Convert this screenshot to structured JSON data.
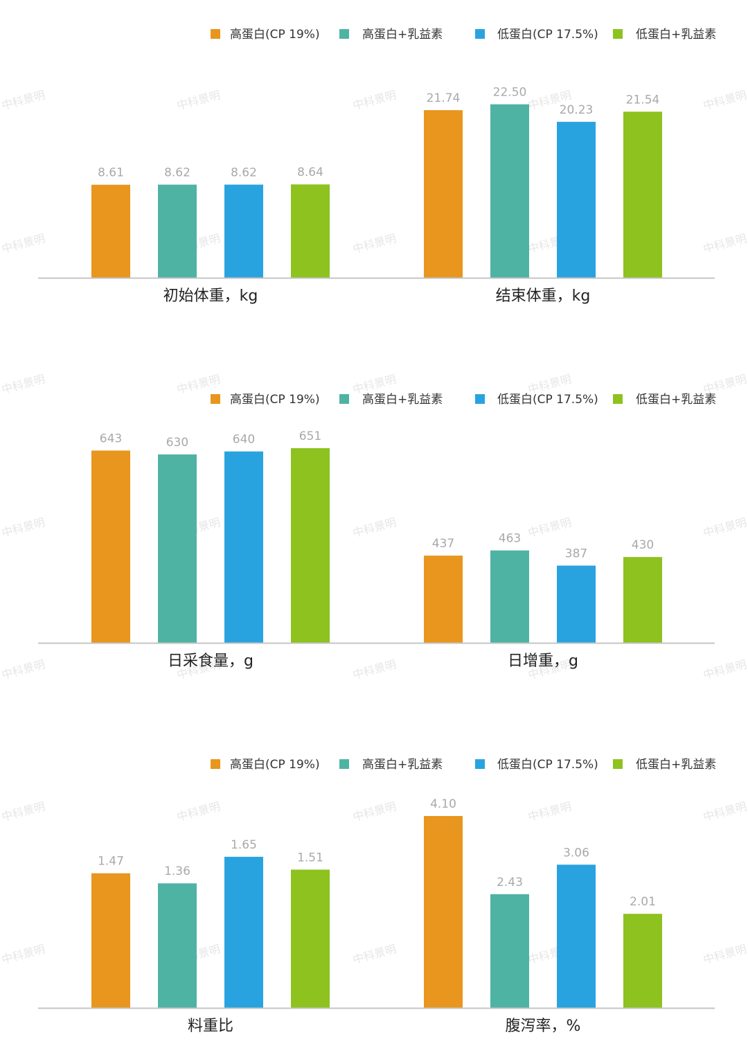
{
  "legend": [
    {
      "label": "高蛋白(CP 19%)",
      "color": "#E8961E"
    },
    {
      "label": "高蛋白+乳益素",
      "color": "#4FB3A4"
    },
    {
      "label": "低蛋白(CP 17.5%)",
      "color": "#29A3DF"
    },
    {
      "label": "低蛋白+乳益素",
      "color": "#8DC21F"
    }
  ],
  "watermark": "中科景明",
  "chart_data": [
    {
      "type": "bar",
      "categories": [
        "初始体重，kg",
        "结束体重，kg"
      ],
      "series": [
        {
          "name": "高蛋白(CP 19%)",
          "values": [
            8.61,
            21.74
          ],
          "labels": [
            "8.61",
            "21.74"
          ]
        },
        {
          "name": "高蛋白+乳益素",
          "values": [
            8.62,
            22.5
          ],
          "labels": [
            "8.62",
            "22.50"
          ]
        },
        {
          "name": "低蛋白(CP 17.5%)",
          "values": [
            8.62,
            20.23
          ],
          "labels": [
            "8.62",
            "20.23"
          ]
        },
        {
          "name": "低蛋白+乳益素",
          "values": [
            8.64,
            21.54
          ],
          "labels": [
            "8.64",
            "21.54"
          ]
        }
      ],
      "legend_position": "top-right",
      "grid": false
    },
    {
      "type": "bar",
      "categories": [
        "日采食量，g",
        "日增重，g"
      ],
      "series": [
        {
          "name": "高蛋白(CP 19%)",
          "values": [
            643,
            437
          ],
          "labels": [
            "643",
            "437"
          ]
        },
        {
          "name": "高蛋白+乳益素",
          "values": [
            630,
            463
          ],
          "labels": [
            "630",
            "463"
          ]
        },
        {
          "name": "低蛋白(CP 17.5%)",
          "values": [
            640,
            387
          ],
          "labels": [
            "640",
            "387"
          ]
        },
        {
          "name": "低蛋白+乳益素",
          "values": [
            651,
            430
          ],
          "labels": [
            "651",
            "430"
          ]
        }
      ],
      "legend_position": "top-right",
      "grid": false
    },
    {
      "type": "bar",
      "categories": [
        "料重比",
        "腹泻率，%"
      ],
      "series": [
        {
          "name": "高蛋白(CP 19%)",
          "values": [
            1.47,
            4.1
          ],
          "labels": [
            "1.47",
            "4.10"
          ]
        },
        {
          "name": "高蛋白+乳益素",
          "values": [
            1.36,
            2.43
          ],
          "labels": [
            "1.36",
            "2.43"
          ]
        },
        {
          "name": "低蛋白(CP 17.5%)",
          "values": [
            1.65,
            3.06
          ],
          "labels": [
            "1.65",
            "3.06"
          ]
        },
        {
          "name": "低蛋白+乳益素",
          "values": [
            1.51,
            2.01
          ],
          "labels": [
            "1.51",
            "2.01"
          ]
        }
      ],
      "legend_position": "top-right",
      "grid": false
    }
  ]
}
